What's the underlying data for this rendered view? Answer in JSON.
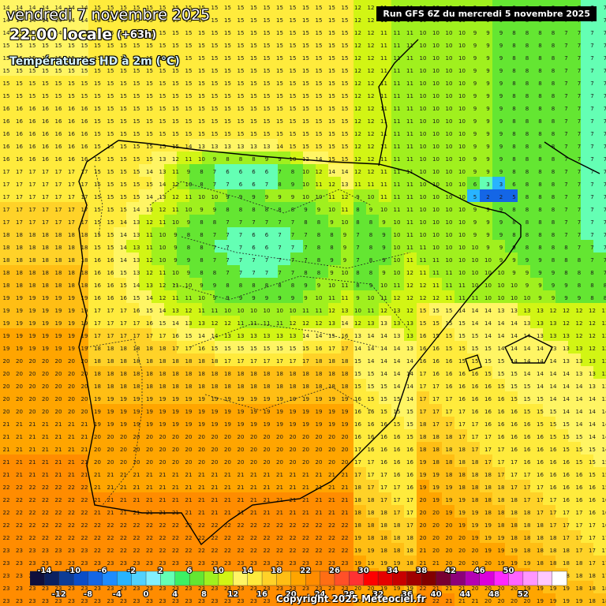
{
  "header": {
    "date": "vendredi 7 novembre 2025",
    "time": "22:00 locale",
    "offset": "(+63h)",
    "parameter": "Températures HD à 2m (°C)"
  },
  "run_label": "Run GFS 6Z du mercredi 5 novembre 2025",
  "copyright": "Copyright 2025 Meteociel.fr",
  "legend": {
    "top_labels": [
      "-14",
      "-10",
      "-6",
      "-2",
      "2",
      "6",
      "10",
      "14",
      "18",
      "22",
      "26",
      "30",
      "34",
      "38",
      "42",
      "46",
      "50"
    ],
    "bottom_labels": [
      "-12",
      "-8",
      "-4",
      "0",
      "4",
      "8",
      "12",
      "16",
      "20",
      "24",
      "28",
      "32",
      "36",
      "40",
      "44",
      "48",
      "52"
    ],
    "colors": [
      "#0f0f3c",
      "#0a2060",
      "#0d3c96",
      "#0a4dc8",
      "#1466e6",
      "#1e8cff",
      "#28b4ff",
      "#50d2ff",
      "#82f0ff",
      "#64ffb4",
      "#3cf064",
      "#64e632",
      "#a0f01e",
      "#d2f514",
      "#fff564",
      "#ffeb3c",
      "#ffd228",
      "#ffbe14",
      "#ffa500",
      "#ff8c00",
      "#ff6e14",
      "#ff5028",
      "#ff3232",
      "#ff0000",
      "#e60000",
      "#c80000",
      "#a00000",
      "#820000",
      "#780032",
      "#8c0078",
      "#b400b4",
      "#dc00dc",
      "#ff28ff",
      "#ff64ff",
      "#ff96ff",
      "#ffc8ff",
      "#ffffff"
    ]
  }
}
